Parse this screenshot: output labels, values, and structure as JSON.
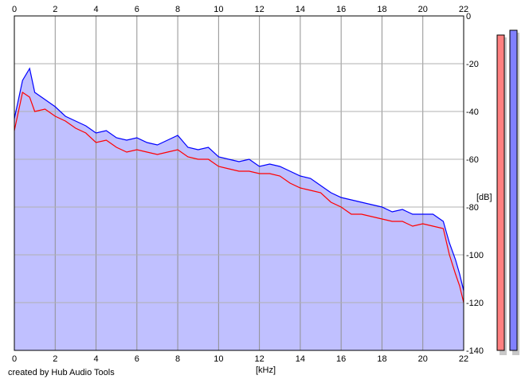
{
  "credit": "created by Hub Audio Tools",
  "chart_data": {
    "type": "line",
    "title": "",
    "xlabel": "[kHz]",
    "ylabel": "[dB]",
    "xlim": [
      0,
      22
    ],
    "ylim": [
      -140,
      0
    ],
    "x_ticks": [
      0,
      2,
      4,
      6,
      8,
      10,
      12,
      14,
      16,
      18,
      20,
      22
    ],
    "x_tick_labels": [
      "0",
      "2",
      "4",
      "6",
      "8",
      "10",
      "12",
      "14",
      "16",
      "18",
      "20",
      "22"
    ],
    "y_ticks": [
      0,
      -20,
      -40,
      -60,
      -80,
      -100,
      -120,
      -140
    ],
    "y_tick_labels": [
      "0",
      "-20",
      "-40",
      "-60",
      "-80",
      "-100",
      "-120",
      "-140"
    ],
    "grid": true,
    "series": [
      {
        "color": "#0000ff",
        "fill": "#c0c0ff",
        "x": [
          0,
          0.4,
          0.75,
          1,
          1.5,
          2,
          2.5,
          3,
          3.5,
          4,
          4.5,
          5,
          5.5,
          6,
          6.5,
          7,
          7.5,
          8,
          8.5,
          9,
          9.5,
          10,
          10.5,
          11,
          11.5,
          12,
          12.5,
          13,
          13.5,
          14,
          14.5,
          15,
          15.5,
          16,
          16.5,
          17,
          17.5,
          18,
          18.5,
          19,
          19.5,
          20,
          20.5,
          21,
          21.3,
          21.6,
          21.8,
          22
        ],
        "y": [
          -43,
          -27,
          -22,
          -32,
          -35,
          -38,
          -42,
          -44,
          -46,
          -49,
          -48,
          -51,
          -52,
          -51,
          -53,
          -54,
          -52,
          -50,
          -55,
          -56,
          -55,
          -59,
          -60,
          -61,
          -60,
          -63,
          -62,
          -63,
          -65,
          -67,
          -68,
          -71,
          -74,
          -76,
          -77,
          -78,
          -79,
          -80,
          -82,
          -81,
          -83,
          -83,
          -83,
          -86,
          -95,
          -102,
          -108,
          -115
        ]
      },
      {
        "color": "#ff0000",
        "x": [
          0,
          0.4,
          0.75,
          1,
          1.5,
          2,
          2.5,
          3,
          3.5,
          4,
          4.5,
          5,
          5.5,
          6,
          6.5,
          7,
          7.5,
          8,
          8.5,
          9,
          9.5,
          10,
          10.5,
          11,
          11.5,
          12,
          12.5,
          13,
          13.5,
          14,
          14.5,
          15,
          15.5,
          16,
          16.5,
          17,
          17.5,
          18,
          18.5,
          19,
          19.5,
          20,
          20.5,
          21,
          21.3,
          21.6,
          21.8,
          22
        ],
        "y": [
          -48,
          -32,
          -34,
          -40,
          -39,
          -42,
          -44,
          -47,
          -49,
          -53,
          -52,
          -55,
          -57,
          -56,
          -57,
          -58,
          -57,
          -56,
          -59,
          -60,
          -60,
          -63,
          -64,
          -65,
          -65,
          -66,
          -66,
          -67,
          -70,
          -72,
          -73,
          -74,
          -78,
          -80,
          -83,
          -83,
          -84,
          -85,
          -86,
          -86,
          -88,
          -87,
          -88,
          -89,
          -100,
          -108,
          -113,
          -120
        ]
      }
    ],
    "level_meters": [
      {
        "color": "#ff8080",
        "level_db": -8
      },
      {
        "color": "#8080ff",
        "level_db": -6
      }
    ]
  }
}
